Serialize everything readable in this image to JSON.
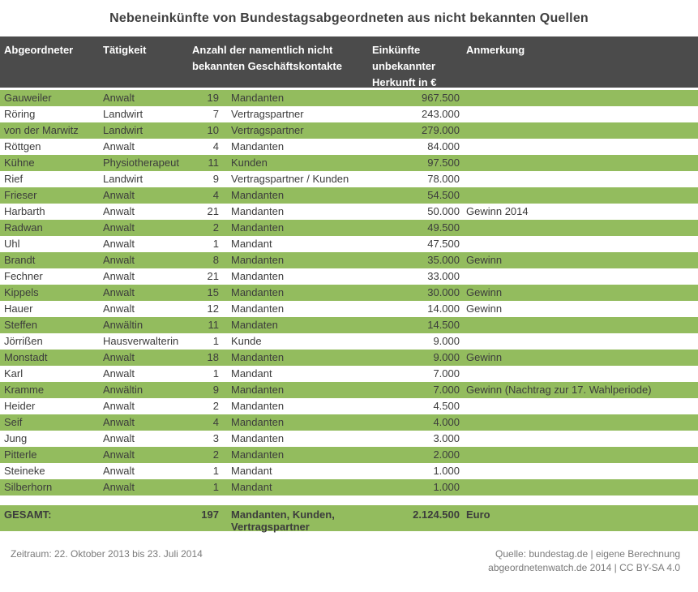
{
  "title": "Nebeneinkünfte von Bundestagsabgeordneten aus nicht bekannten Quellen",
  "colors": {
    "row_green": "#93BC5E",
    "header_bg": "#4B4B4B",
    "title_text": "#3F3F3F",
    "footer_text": "#7A7A7A"
  },
  "chart_data": {
    "type": "table",
    "title": "Nebeneinkünfte von Bundestagsabgeordneten aus nicht bekannten Quellen",
    "header": {
      "abgeordneter": "Abgeordneter",
      "taetigkeit": "Tätigkeit",
      "anzahl": "Anzahl der namentlich nicht bekannten Geschäftskontakte",
      "einkuenfte": "Einkünfte unbekannter Herkunft in €",
      "anmerkung": "Anmerkung"
    },
    "rows": [
      {
        "name": "Gauweiler",
        "taetigkeit": "Anwalt",
        "anzahl": "19",
        "kontakte": "Mandanten",
        "einkuenfte": "967.500",
        "anmerkung": ""
      },
      {
        "name": "Röring",
        "taetigkeit": "Landwirt",
        "anzahl": "7",
        "kontakte": "Vertragspartner",
        "einkuenfte": "243.000",
        "anmerkung": ""
      },
      {
        "name": "von der Marwitz",
        "taetigkeit": "Landwirt",
        "anzahl": "10",
        "kontakte": "Vertragspartner",
        "einkuenfte": "279.000",
        "anmerkung": ""
      },
      {
        "name": "Röttgen",
        "taetigkeit": "Anwalt",
        "anzahl": "4",
        "kontakte": "Mandanten",
        "einkuenfte": "84.000",
        "anmerkung": ""
      },
      {
        "name": "Kühne",
        "taetigkeit": "Physiotherapeut",
        "anzahl": "11",
        "kontakte": "Kunden",
        "einkuenfte": "97.500",
        "anmerkung": ""
      },
      {
        "name": "Rief",
        "taetigkeit": "Landwirt",
        "anzahl": "9",
        "kontakte": "Vertragspartner / Kunden",
        "einkuenfte": "78.000",
        "anmerkung": ""
      },
      {
        "name": "Frieser",
        "taetigkeit": "Anwalt",
        "anzahl": "4",
        "kontakte": "Mandanten",
        "einkuenfte": "54.500",
        "anmerkung": ""
      },
      {
        "name": "Harbarth",
        "taetigkeit": "Anwalt",
        "anzahl": "21",
        "kontakte": "Mandanten",
        "einkuenfte": "50.000",
        "anmerkung": "Gewinn 2014"
      },
      {
        "name": "Radwan",
        "taetigkeit": "Anwalt",
        "anzahl": "2",
        "kontakte": "Mandanten",
        "einkuenfte": "49.500",
        "anmerkung": ""
      },
      {
        "name": "Uhl",
        "taetigkeit": "Anwalt",
        "anzahl": "1",
        "kontakte": "Mandant",
        "einkuenfte": "47.500",
        "anmerkung": ""
      },
      {
        "name": "Brandt",
        "taetigkeit": "Anwalt",
        "anzahl": "8",
        "kontakte": "Mandanten",
        "einkuenfte": "35.000",
        "anmerkung": "Gewinn"
      },
      {
        "name": "Fechner",
        "taetigkeit": "Anwalt",
        "anzahl": "21",
        "kontakte": "Mandanten",
        "einkuenfte": "33.000",
        "anmerkung": ""
      },
      {
        "name": "Kippels",
        "taetigkeit": "Anwalt",
        "anzahl": "15",
        "kontakte": "Mandanten",
        "einkuenfte": "30.000",
        "anmerkung": "Gewinn"
      },
      {
        "name": "Hauer",
        "taetigkeit": "Anwalt",
        "anzahl": "12",
        "kontakte": "Mandanten",
        "einkuenfte": "14.000",
        "anmerkung": "Gewinn"
      },
      {
        "name": "Steffen",
        "taetigkeit": "Anwältin",
        "anzahl": "11",
        "kontakte": "Mandaten",
        "einkuenfte": "14.500",
        "anmerkung": ""
      },
      {
        "name": "Jörrißen",
        "taetigkeit": "Hausverwalterin",
        "anzahl": "1",
        "kontakte": "Kunde",
        "einkuenfte": "9.000",
        "anmerkung": ""
      },
      {
        "name": "Monstadt",
        "taetigkeit": "Anwalt",
        "anzahl": "18",
        "kontakte": "Mandanten",
        "einkuenfte": "9.000",
        "anmerkung": "Gewinn"
      },
      {
        "name": "Karl",
        "taetigkeit": "Anwalt",
        "anzahl": "1",
        "kontakte": "Mandant",
        "einkuenfte": "7.000",
        "anmerkung": ""
      },
      {
        "name": "Kramme",
        "taetigkeit": "Anwältin",
        "anzahl": "9",
        "kontakte": "Mandanten",
        "einkuenfte": "7.000",
        "anmerkung": "Gewinn (Nachtrag zur 17. Wahlperiode)"
      },
      {
        "name": "Heider",
        "taetigkeit": "Anwalt",
        "anzahl": "2",
        "kontakte": "Mandanten",
        "einkuenfte": "4.500",
        "anmerkung": ""
      },
      {
        "name": "Seif",
        "taetigkeit": "Anwalt",
        "anzahl": "4",
        "kontakte": "Mandanten",
        "einkuenfte": "4.000",
        "anmerkung": ""
      },
      {
        "name": "Jung",
        "taetigkeit": "Anwalt",
        "anzahl": "3",
        "kontakte": "Mandanten",
        "einkuenfte": "3.000",
        "anmerkung": ""
      },
      {
        "name": "Pitterle",
        "taetigkeit": "Anwalt",
        "anzahl": "2",
        "kontakte": "Mandanten",
        "einkuenfte": "2.000",
        "anmerkung": ""
      },
      {
        "name": "Steineke",
        "taetigkeit": "Anwalt",
        "anzahl": "1",
        "kontakte": "Mandant",
        "einkuenfte": "1.000",
        "anmerkung": ""
      },
      {
        "name": "Silberhorn",
        "taetigkeit": "Anwalt",
        "anzahl": "1",
        "kontakte": "Mandant",
        "einkuenfte": "1.000",
        "anmerkung": ""
      }
    ],
    "total": {
      "label": "GESAMT:",
      "anzahl": "197",
      "kontakte_line1": "Mandanten, Kunden,",
      "kontakte_line2": "Vertragspartner",
      "einkuenfte": "2.124.500",
      "anmerkung": "Euro"
    }
  },
  "footer": {
    "zeitraum": "Zeitraum: 22. Oktober 2013 bis 23. Juli 2014",
    "quelle_line1": "Quelle: bundestag.de | eigene Berechnung",
    "quelle_line2": "abgeordnetenwatch.de 2014 | CC BY-SA 4.0"
  }
}
